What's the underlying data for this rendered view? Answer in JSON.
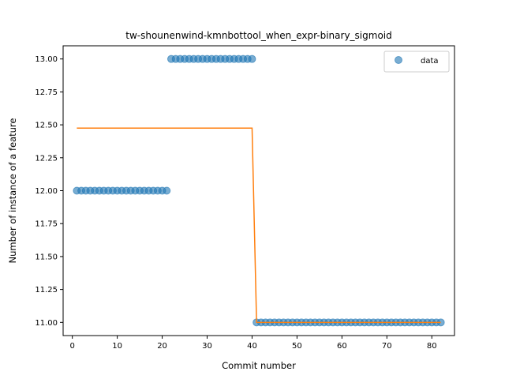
{
  "chart_data": {
    "type": "scatter",
    "title": "tw-shounenwind-kmnbottool_when_expr-binary_sigmoid",
    "xlabel": "Commit number",
    "ylabel": "Number of instance of a feature",
    "xlim": [
      -2.05,
      85.05
    ],
    "ylim": [
      10.9,
      13.1
    ],
    "xticks": [
      0,
      10,
      20,
      30,
      40,
      50,
      60,
      70,
      80
    ],
    "yticks": [
      11.0,
      11.25,
      11.5,
      11.75,
      12.0,
      12.25,
      12.5,
      12.75,
      13.0
    ],
    "ytick_labels": [
      "11.00",
      "11.25",
      "11.50",
      "11.75",
      "12.00",
      "12.25",
      "12.50",
      "12.75",
      "13.00"
    ],
    "grid": false,
    "legend_position": "top-right",
    "series": [
      {
        "name": "data",
        "kind": "scatter",
        "color": "#1f77b4",
        "segments": [
          {
            "x_start": 1,
            "x_end": 21,
            "y": 12.0
          },
          {
            "x_start": 22,
            "x_end": 40,
            "y": 13.0
          },
          {
            "x_start": 41,
            "x_end": 82,
            "y": 11.0
          }
        ]
      },
      {
        "kind": "line",
        "color": "#ff7f0e",
        "points": [
          [
            1,
            12.475
          ],
          [
            40,
            12.475
          ],
          [
            41,
            11.0
          ],
          [
            82,
            11.0
          ]
        ]
      }
    ]
  }
}
